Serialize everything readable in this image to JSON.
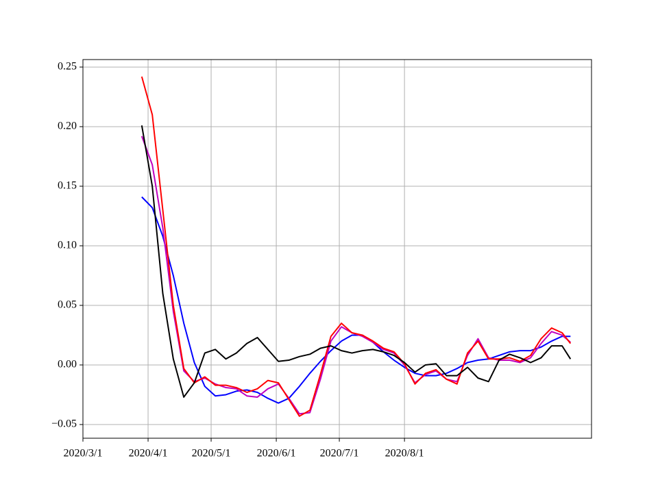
{
  "chart_data": {
    "type": "line",
    "x": [
      "2020/3/29",
      "2020/4/3",
      "2020/4/8",
      "2020/4/13",
      "2020/4/18",
      "2020/4/23",
      "2020/4/28",
      "2020/5/3",
      "2020/5/8",
      "2020/5/13",
      "2020/5/18",
      "2020/5/23",
      "2020/5/28",
      "2020/6/2",
      "2020/6/7",
      "2020/6/12",
      "2020/6/17",
      "2020/6/22",
      "2020/6/27",
      "2020/7/2",
      "2020/7/7",
      "2020/7/12",
      "2020/7/17",
      "2020/7/22",
      "2020/7/27",
      "2020/8/1",
      "2020/8/6",
      "2020/8/11",
      "2020/8/16",
      "2020/8/21",
      "2020/8/26",
      "2020/8/31",
      "2020/9/5",
      "2020/9/10",
      "2020/9/15",
      "2020/9/20",
      "2020/9/25",
      "2020/9/30",
      "2020/10/5",
      "2020/10/10",
      "2020/10/15",
      "2020/10/19"
    ],
    "series": [
      {
        "color": "#0000ff",
        "values": [
          0.141,
          0.132,
          0.108,
          0.075,
          0.035,
          0.002,
          -0.018,
          -0.026,
          -0.025,
          -0.022,
          -0.021,
          -0.023,
          -0.028,
          -0.032,
          -0.028,
          -0.018,
          -0.007,
          0.003,
          0.012,
          0.02,
          0.025,
          0.025,
          0.019,
          0.011,
          0.004,
          -0.002,
          -0.007,
          -0.009,
          -0.009,
          -0.007,
          -0.003,
          0.002,
          0.004,
          0.005,
          0.008,
          0.011,
          0.012,
          0.012,
          0.015,
          0.02,
          0.024,
          0.024
        ]
      },
      {
        "color": "#bf00bf",
        "values": [
          0.192,
          0.168,
          0.115,
          0.045,
          -0.005,
          -0.014,
          -0.011,
          -0.016,
          -0.019,
          -0.02,
          -0.026,
          -0.027,
          -0.02,
          -0.016,
          -0.028,
          -0.041,
          -0.04,
          -0.012,
          0.02,
          0.032,
          0.027,
          0.024,
          0.019,
          0.013,
          0.01,
          0.0,
          -0.015,
          -0.008,
          -0.005,
          -0.012,
          -0.014,
          0.008,
          0.022,
          0.006,
          0.004,
          0.004,
          0.002,
          0.006,
          0.018,
          0.028,
          0.025,
          0.019
        ]
      },
      {
        "color": "#ff0000",
        "values": [
          0.242,
          0.21,
          0.13,
          0.05,
          -0.003,
          -0.015,
          -0.01,
          -0.017,
          -0.017,
          -0.019,
          -0.023,
          -0.02,
          -0.013,
          -0.015,
          -0.029,
          -0.043,
          -0.038,
          -0.008,
          0.024,
          0.035,
          0.027,
          0.025,
          0.02,
          0.014,
          0.011,
          0.001,
          -0.016,
          -0.007,
          -0.004,
          -0.012,
          -0.016,
          0.01,
          0.02,
          0.005,
          0.005,
          0.006,
          0.003,
          0.008,
          0.022,
          0.031,
          0.027,
          0.018
        ]
      },
      {
        "color": "#000000",
        "values": [
          0.201,
          0.15,
          0.06,
          0.005,
          -0.027,
          -0.015,
          0.01,
          0.013,
          0.005,
          0.01,
          0.018,
          0.023,
          0.013,
          0.003,
          0.004,
          0.007,
          0.009,
          0.014,
          0.016,
          0.012,
          0.01,
          0.012,
          0.013,
          0.011,
          0.008,
          0.002,
          -0.006,
          0.0,
          0.001,
          -0.009,
          -0.009,
          -0.002,
          -0.011,
          -0.014,
          0.004,
          0.009,
          0.006,
          0.002,
          0.006,
          0.016,
          0.016,
          0.005
        ]
      }
    ],
    "xlim": [
      "2020/3/1",
      "2020/10/29"
    ],
    "xticks": [
      "2020/3/1",
      "2020/4/1",
      "2020/5/1",
      "2020/6/1",
      "2020/7/1",
      "2020/8/1"
    ],
    "ylim": [
      -0.0615,
      0.2563
    ],
    "yticks": [
      {
        "value": -0.05,
        "label": "−0.05"
      },
      {
        "value": 0,
        "label": "0.00"
      },
      {
        "value": 0.05,
        "label": "0.05"
      },
      {
        "value": 0.1,
        "label": "0.10"
      },
      {
        "value": 0.15,
        "label": "0.15"
      },
      {
        "value": 0.2,
        "label": "0.20"
      },
      {
        "value": 0.25,
        "label": "0.25"
      }
    ],
    "grid": true
  }
}
